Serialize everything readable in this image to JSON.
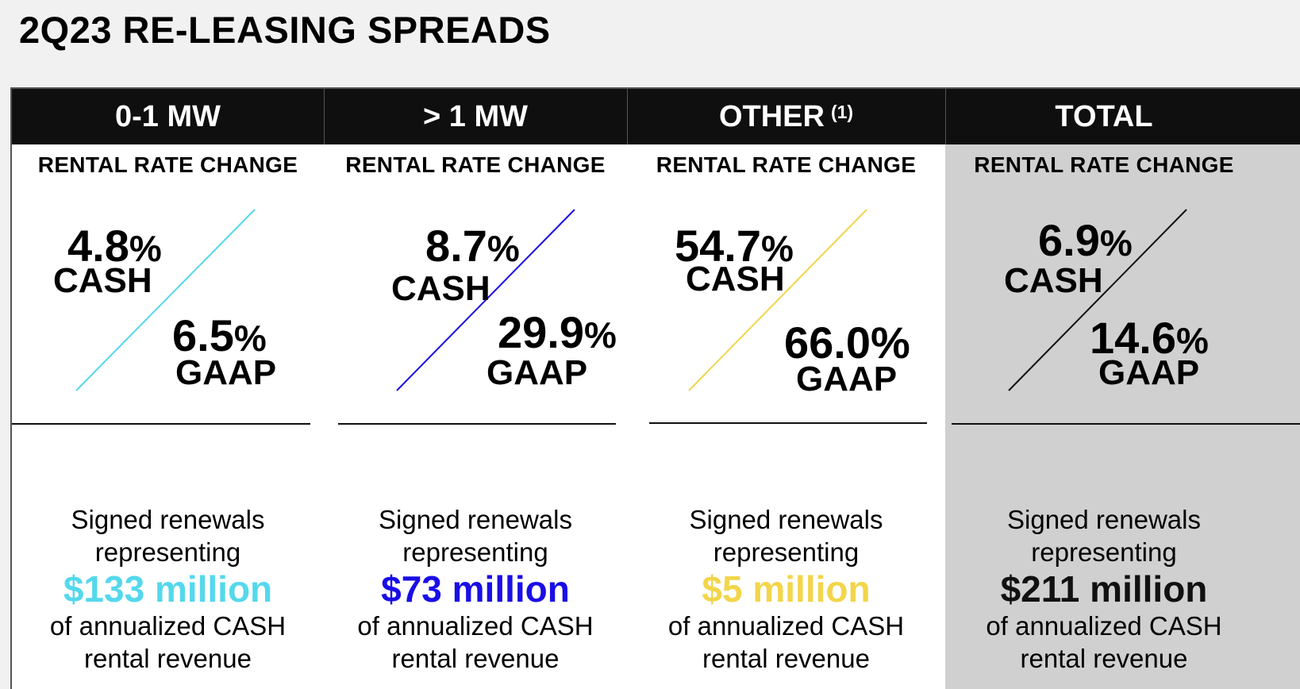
{
  "title": "2Q23 RE-LEASING SPREADS",
  "columns": [
    {
      "header": "0-1 MW",
      "header_sup": "",
      "sub_label": "RENTAL RATE CHANGE",
      "cash_value": "4.8",
      "cash_pct": "%",
      "cash_label": "CASH",
      "gaap_value": "6.5",
      "gaap_pct": "%",
      "gaap_label": "GAAP",
      "line_color": "#55d8ec",
      "summary_line1": "Signed renewals",
      "summary_line2": "representing",
      "amount": "$133 million",
      "amount_color": "#55d8ec",
      "summary_line3": "of annualized CASH",
      "summary_line4": "rental revenue"
    },
    {
      "header": "> 1 MW",
      "header_sup": "",
      "sub_label": "RENTAL RATE CHANGE",
      "cash_value": "8.7",
      "cash_pct": "%",
      "cash_label": "CASH",
      "gaap_value": "29.9",
      "gaap_pct": "%",
      "gaap_label": "GAAP",
      "line_color": "#1a0ee6",
      "summary_line1": "Signed renewals",
      "summary_line2": "representing",
      "amount": "$73 million",
      "amount_color": "#1a0ee6",
      "summary_line3": "of annualized CASH",
      "summary_line4": "rental revenue"
    },
    {
      "header": "OTHER",
      "header_sup": "(1)",
      "sub_label": "RENTAL RATE CHANGE",
      "cash_value": "54.7",
      "cash_pct": "%",
      "cash_label": "CASH",
      "gaap_value": "66.0%",
      "gaap_pct": "",
      "gaap_label": "GAAP",
      "line_color": "#f2d54a",
      "summary_line1": "Signed renewals",
      "summary_line2": "representing",
      "amount": "$5 million",
      "amount_color": "#f2d54a",
      "summary_line3": "of annualized CASH",
      "summary_line4": "rental revenue"
    },
    {
      "header": "TOTAL",
      "header_sup": "",
      "sub_label": "RENTAL RATE CHANGE",
      "cash_value": "6.9",
      "cash_pct": "%",
      "cash_label": "CASH",
      "gaap_value": "14.6",
      "gaap_pct": "%",
      "gaap_label": "GAAP",
      "line_color": "#111111",
      "summary_line1": "Signed renewals",
      "summary_line2": "representing",
      "amount": "$211 million",
      "amount_color": "#111111",
      "summary_line3": "of annualized CASH",
      "summary_line4": "rental revenue"
    }
  ]
}
